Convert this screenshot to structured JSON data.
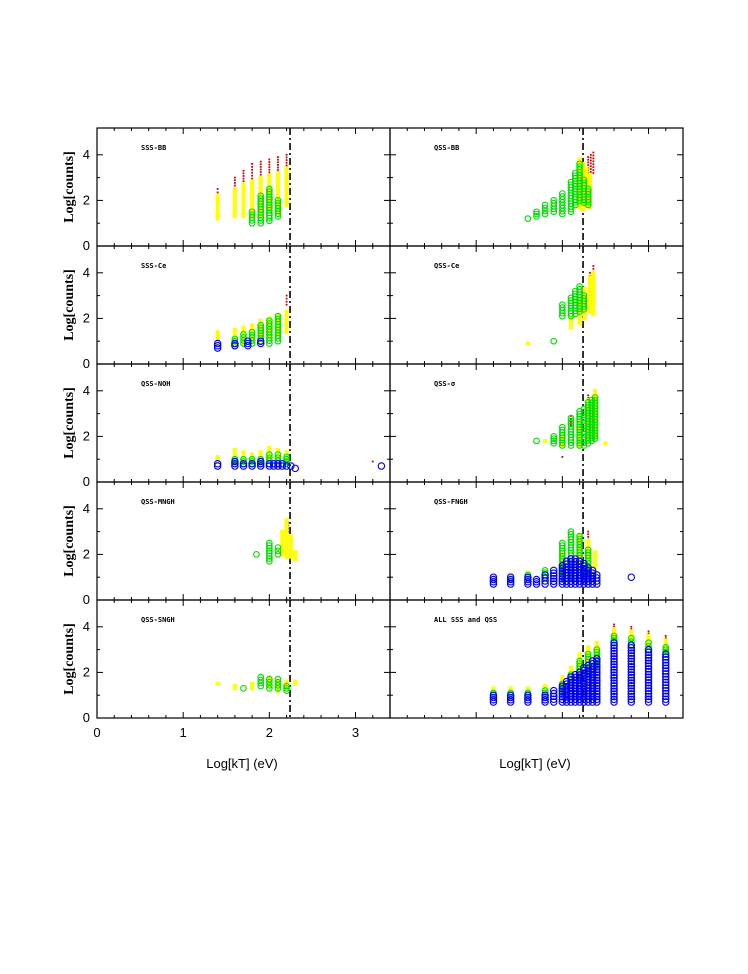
{
  "colors": {
    "red": "#cc0000",
    "yellow": "#ffff00",
    "green": "#00dd00",
    "blue": "#0000ee",
    "frame": "#000000"
  },
  "chart_data": {
    "type": "scatter",
    "grid": "off",
    "xlabel_left": "Log[kT] (eV)",
    "xlabel_right": "Log[kT] (eV)",
    "ylabel": "Log[counts]",
    "xlim": [
      0,
      3.4
    ],
    "ylim": [
      0,
      5
    ],
    "xticks": [
      "0",
      "1",
      "2",
      "3"
    ],
    "yticks": [
      "0",
      "2",
      "4"
    ],
    "vline_x": 2.24,
    "panels": [
      {
        "label": "SSS-BB",
        "series": [
          {
            "name": "red",
            "x": [
              1.4,
              1.6,
              1.7,
              1.8,
              1.9,
              2.0,
              2.1,
              2.2
            ],
            "ymin": [
              2.2,
              2.3,
              2.5,
              2.7,
              2.9,
              3.0,
              3.1,
              3.3
            ],
            "ymax": [
              2.5,
              3.0,
              3.3,
              3.6,
              3.7,
              3.8,
              3.9,
              4.0
            ]
          },
          {
            "name": "yellow",
            "x": [
              1.4,
              1.6,
              1.7,
              1.8,
              1.9,
              2.0,
              2.1,
              2.2
            ],
            "ymin": [
              1.2,
              1.3,
              1.3,
              1.3,
              1.3,
              1.5,
              1.5,
              1.8
            ],
            "ymax": [
              2.2,
              2.5,
              2.7,
              2.8,
              3.0,
              3.1,
              3.2,
              3.4
            ]
          },
          {
            "name": "green",
            "x": [
              1.8,
              1.9,
              2.0,
              2.1
            ],
            "ymin": [
              1.0,
              1.0,
              1.1,
              1.3
            ],
            "ymax": [
              1.5,
              2.2,
              2.5,
              2.0
            ]
          }
        ]
      },
      {
        "label": "QSS-BB",
        "series": [
          {
            "name": "red",
            "x": [
              2.3,
              2.33,
              2.36
            ],
            "ymin": [
              3.2,
              3.0,
              3.2
            ],
            "ymax": [
              3.9,
              4.0,
              4.1
            ]
          },
          {
            "name": "yellow",
            "x": [
              2.2,
              2.24,
              2.28,
              2.32
            ],
            "ymin": [
              1.7,
              1.6,
              1.8,
              1.7
            ],
            "ymax": [
              3.8,
              3.6,
              3.4,
              3.1
            ]
          },
          {
            "name": "green",
            "x": [
              1.6,
              1.7,
              1.8,
              1.9,
              2.0,
              2.1,
              2.15,
              2.2,
              2.25,
              2.3
            ],
            "ymin": [
              1.2,
              1.3,
              1.4,
              1.5,
              1.4,
              1.5,
              1.8,
              2.0,
              1.9,
              1.8
            ],
            "ymax": [
              1.2,
              1.5,
              1.8,
              2.0,
              2.3,
              2.8,
              3.2,
              3.6,
              2.9,
              2.5
            ]
          }
        ]
      },
      {
        "label": "SSS-Ce",
        "series": [
          {
            "name": "red",
            "x": [
              2.2
            ],
            "ymin": [
              2.6
            ],
            "ymax": [
              3.0
            ]
          },
          {
            "name": "yellow",
            "x": [
              1.4,
              1.6,
              1.7,
              1.8,
              1.9,
              2.0,
              2.1,
              2.2
            ],
            "ymin": [
              0.9,
              0.9,
              0.9,
              1.0,
              1.0,
              1.2,
              1.3,
              1.4
            ],
            "ymax": [
              1.4,
              1.5,
              1.6,
              1.7,
              1.9,
              2.0,
              2.1,
              2.3
            ]
          },
          {
            "name": "green",
            "x": [
              1.6,
              1.7,
              1.8,
              1.9,
              2.0,
              2.1
            ],
            "ymin": [
              0.8,
              0.9,
              0.9,
              1.0,
              0.9,
              1.0
            ],
            "ymax": [
              1.1,
              1.3,
              1.4,
              1.7,
              1.9,
              2.1
            ]
          },
          {
            "name": "blue",
            "x": [
              1.4,
              1.6,
              1.75,
              1.9
            ],
            "ymin": [
              0.7,
              0.8,
              0.8,
              0.9
            ],
            "ymax": [
              0.9,
              0.9,
              1.0,
              1.0
            ]
          }
        ]
      },
      {
        "label": "QSS-Ce",
        "series": [
          {
            "name": "red",
            "x": [
              2.32,
              2.36
            ],
            "ymin": [
              3.6,
              3.8
            ],
            "ymax": [
              4.0,
              4.3
            ]
          },
          {
            "name": "yellow",
            "x": [
              1.6,
              2.1,
              2.2,
              2.26,
              2.32,
              2.36
            ],
            "ymin": [
              0.9,
              1.6,
              1.8,
              2.0,
              2.3,
              2.2
            ],
            "ymax": [
              0.9,
              2.0,
              2.8,
              3.3,
              3.8,
              4.0
            ]
          },
          {
            "name": "green",
            "x": [
              1.9,
              2.0,
              2.1,
              2.15,
              2.2,
              2.25
            ],
            "ymin": [
              1.0,
              2.1,
              2.1,
              2.2,
              2.3,
              2.4
            ],
            "ymax": [
              1.0,
              2.6,
              2.9,
              3.2,
              3.4,
              3.0
            ]
          }
        ]
      },
      {
        "label": "QSS-NOH",
        "series": [
          {
            "name": "red",
            "x": [
              3.2
            ],
            "ymin": [
              0.9
            ],
            "ymax": [
              0.9
            ]
          },
          {
            "name": "yellow",
            "x": [
              1.4,
              1.6,
              1.7,
              1.8,
              1.9,
              2.0,
              2.1,
              2.2
            ],
            "ymin": [
              0.9,
              0.9,
              0.9,
              0.9,
              0.9,
              1.0,
              1.0,
              1.0
            ],
            "ymax": [
              1.1,
              1.4,
              1.3,
              1.2,
              1.3,
              1.5,
              1.4,
              1.3
            ]
          },
          {
            "name": "green",
            "x": [
              1.6,
              1.7,
              1.8,
              1.9,
              2.0,
              2.1,
              2.2
            ],
            "ymin": [
              0.8,
              0.8,
              0.8,
              0.8,
              0.8,
              0.8,
              0.8
            ],
            "ymax": [
              1.0,
              1.0,
              1.0,
              1.0,
              1.2,
              1.2,
              1.1
            ]
          },
          {
            "name": "blue",
            "x": [
              1.4,
              1.6,
              1.7,
              1.8,
              1.9,
              2.0,
              2.05,
              2.1,
              2.15,
              2.2,
              2.25,
              2.3,
              3.3
            ],
            "ymin": [
              0.7,
              0.7,
              0.7,
              0.7,
              0.7,
              0.7,
              0.7,
              0.7,
              0.7,
              0.7,
              0.7,
              0.6,
              0.7
            ],
            "ymax": [
              0.8,
              0.9,
              0.8,
              0.8,
              0.9,
              0.8,
              0.8,
              0.8,
              0.8,
              0.7,
              0.7,
              0.6,
              0.7
            ]
          }
        ]
      },
      {
        "label": "QSS-σ",
        "series": [
          {
            "name": "red",
            "x": [
              2.0,
              2.1,
              2.3
            ],
            "ymin": [
              1.1,
              2.5,
              3.0
            ],
            "ymax": [
              1.1,
              2.9,
              3.8
            ]
          },
          {
            "name": "yellow",
            "x": [
              1.8,
              2.0,
              2.2,
              2.3,
              2.38,
              2.5
            ],
            "ymin": [
              1.8,
              1.6,
              1.6,
              1.8,
              2.0,
              1.7
            ],
            "ymax": [
              1.8,
              2.0,
              2.6,
              3.6,
              4.0,
              1.7
            ]
          },
          {
            "name": "green",
            "x": [
              1.7,
              1.9,
              2.0,
              2.1,
              2.2,
              2.25,
              2.3,
              2.34,
              2.38
            ],
            "ymin": [
              1.8,
              1.7,
              1.6,
              1.6,
              1.6,
              1.6,
              1.7,
              1.8,
              1.9
            ],
            "ymax": [
              1.8,
              2.0,
              2.4,
              2.8,
              3.1,
              3.2,
              3.5,
              3.6,
              3.7
            ]
          }
        ]
      },
      {
        "label": "QSS-MNGH",
        "series": [
          {
            "name": "red",
            "x": [
              2.22
            ],
            "ymin": [
              3.0
            ],
            "ymax": [
              3.4
            ]
          },
          {
            "name": "yellow",
            "x": [
              2.15,
              2.2,
              2.25,
              2.3
            ],
            "ymin": [
              2.0,
              1.9,
              1.9,
              1.8
            ],
            "ymax": [
              3.0,
              3.5,
              2.8,
              2.1
            ]
          },
          {
            "name": "green",
            "x": [
              1.85,
              2.0,
              2.1
            ],
            "ymin": [
              2.0,
              1.7,
              2.0
            ],
            "ymax": [
              2.0,
              2.5,
              2.3
            ]
          }
        ]
      },
      {
        "label": "QSS-FNGH",
        "series": [
          {
            "name": "red",
            "x": [
              2.2,
              2.3
            ],
            "ymin": [
              2.5,
              2.3
            ],
            "ymax": [
              2.9,
              3.0
            ]
          },
          {
            "name": "yellow",
            "x": [
              1.2,
              1.4,
              1.6,
              2.0,
              2.2,
              2.3,
              2.38
            ],
            "ymin": [
              1.0,
              1.0,
              1.1,
              1.2,
              1.3,
              1.2,
              1.1
            ],
            "ymax": [
              1.0,
              1.1,
              1.2,
              2.0,
              2.8,
              2.6,
              2.1
            ]
          },
          {
            "name": "green",
            "x": [
              1.4,
              1.6,
              1.8,
              2.0,
              2.1,
              2.2,
              2.3
            ],
            "ymin": [
              0.9,
              1.0,
              1.0,
              1.0,
              1.0,
              1.1,
              1.1
            ],
            "ymax": [
              0.9,
              1.1,
              1.3,
              2.5,
              3.0,
              2.8,
              2.2
            ]
          },
          {
            "name": "blue",
            "x": [
              1.2,
              1.4,
              1.6,
              1.7,
              1.8,
              1.9,
              2.0,
              2.05,
              2.1,
              2.15,
              2.2,
              2.25,
              2.3,
              2.35,
              2.4,
              2.8
            ],
            "ymin": [
              0.7,
              0.7,
              0.7,
              0.7,
              0.7,
              0.7,
              0.7,
              0.7,
              0.7,
              0.7,
              0.7,
              0.7,
              0.7,
              0.7,
              0.7,
              1.0
            ],
            "ymax": [
              1.0,
              1.0,
              1.0,
              0.9,
              1.1,
              1.3,
              1.5,
              1.7,
              1.8,
              1.8,
              1.7,
              1.6,
              1.4,
              1.3,
              1.1,
              1.0
            ]
          }
        ]
      },
      {
        "label": "QSS-SNGH",
        "series": [
          {
            "name": "yellow",
            "x": [
              1.4,
              1.6,
              1.8,
              2.0,
              2.1,
              2.2,
              2.3
            ],
            "ymin": [
              1.5,
              1.3,
              1.3,
              1.4,
              1.2,
              1.3,
              1.5
            ],
            "ymax": [
              1.5,
              1.4,
              1.5,
              1.8,
              1.6,
              1.6,
              1.6
            ]
          },
          {
            "name": "green",
            "x": [
              1.7,
              1.9,
              2.0,
              2.1,
              2.2
            ],
            "ymin": [
              1.3,
              1.4,
              1.3,
              1.3,
              1.2
            ],
            "ymax": [
              1.3,
              1.8,
              1.7,
              1.7,
              1.4
            ]
          }
        ]
      },
      {
        "label": "ALL SSS and QSS",
        "series": [
          {
            "name": "red",
            "x": [
              2.6,
              2.8,
              3.0,
              3.2
            ],
            "ymin": [
              3.9,
              3.8,
              3.6,
              3.4
            ],
            "ymax": [
              4.1,
              4.0,
              3.8,
              3.6
            ]
          },
          {
            "name": "yellow",
            "x": [
              1.2,
              1.4,
              1.6,
              1.8,
              2.0,
              2.1,
              2.2,
              2.3,
              2.4,
              2.6,
              2.8,
              3.0,
              3.2
            ],
            "ymin": [
              1.2,
              1.2,
              1.2,
              1.2,
              1.3,
              1.5,
              2.0,
              2.3,
              2.6,
              3.6,
              3.5,
              3.3,
              3.1
            ],
            "ymax": [
              1.3,
              1.3,
              1.3,
              1.4,
              1.8,
              2.2,
              2.8,
              3.1,
              3.3,
              3.9,
              3.8,
              3.6,
              3.4
            ]
          },
          {
            "name": "green",
            "x": [
              1.2,
              1.4,
              1.6,
              1.8,
              2.0,
              2.1,
              2.2,
              2.3,
              2.4,
              2.6,
              2.8,
              3.0,
              3.2
            ],
            "ymin": [
              1.0,
              1.0,
              1.0,
              1.0,
              1.1,
              1.3,
              1.7,
              2.0,
              2.3,
              3.3,
              3.2,
              3.0,
              2.8
            ],
            "ymax": [
              1.1,
              1.1,
              1.1,
              1.2,
              1.5,
              1.9,
              2.5,
              2.8,
              3.0,
              3.6,
              3.5,
              3.3,
              3.1
            ]
          },
          {
            "name": "blue",
            "x": [
              1.2,
              1.4,
              1.6,
              1.8,
              1.9,
              2.0,
              2.05,
              2.1,
              2.15,
              2.2,
              2.25,
              2.3,
              2.35,
              2.4,
              2.6,
              2.8,
              3.0,
              3.2
            ],
            "ymin": [
              0.7,
              0.7,
              0.7,
              0.7,
              0.7,
              0.7,
              0.7,
              0.7,
              0.7,
              0.7,
              0.7,
              0.7,
              0.7,
              0.7,
              0.7,
              0.7,
              0.7,
              0.7
            ],
            "ymax": [
              1.0,
              1.0,
              1.0,
              1.0,
              1.2,
              1.4,
              1.6,
              1.8,
              1.9,
              2.0,
              2.2,
              2.3,
              2.5,
              2.6,
              3.3,
              3.2,
              3.0,
              2.8
            ]
          }
        ]
      }
    ]
  }
}
